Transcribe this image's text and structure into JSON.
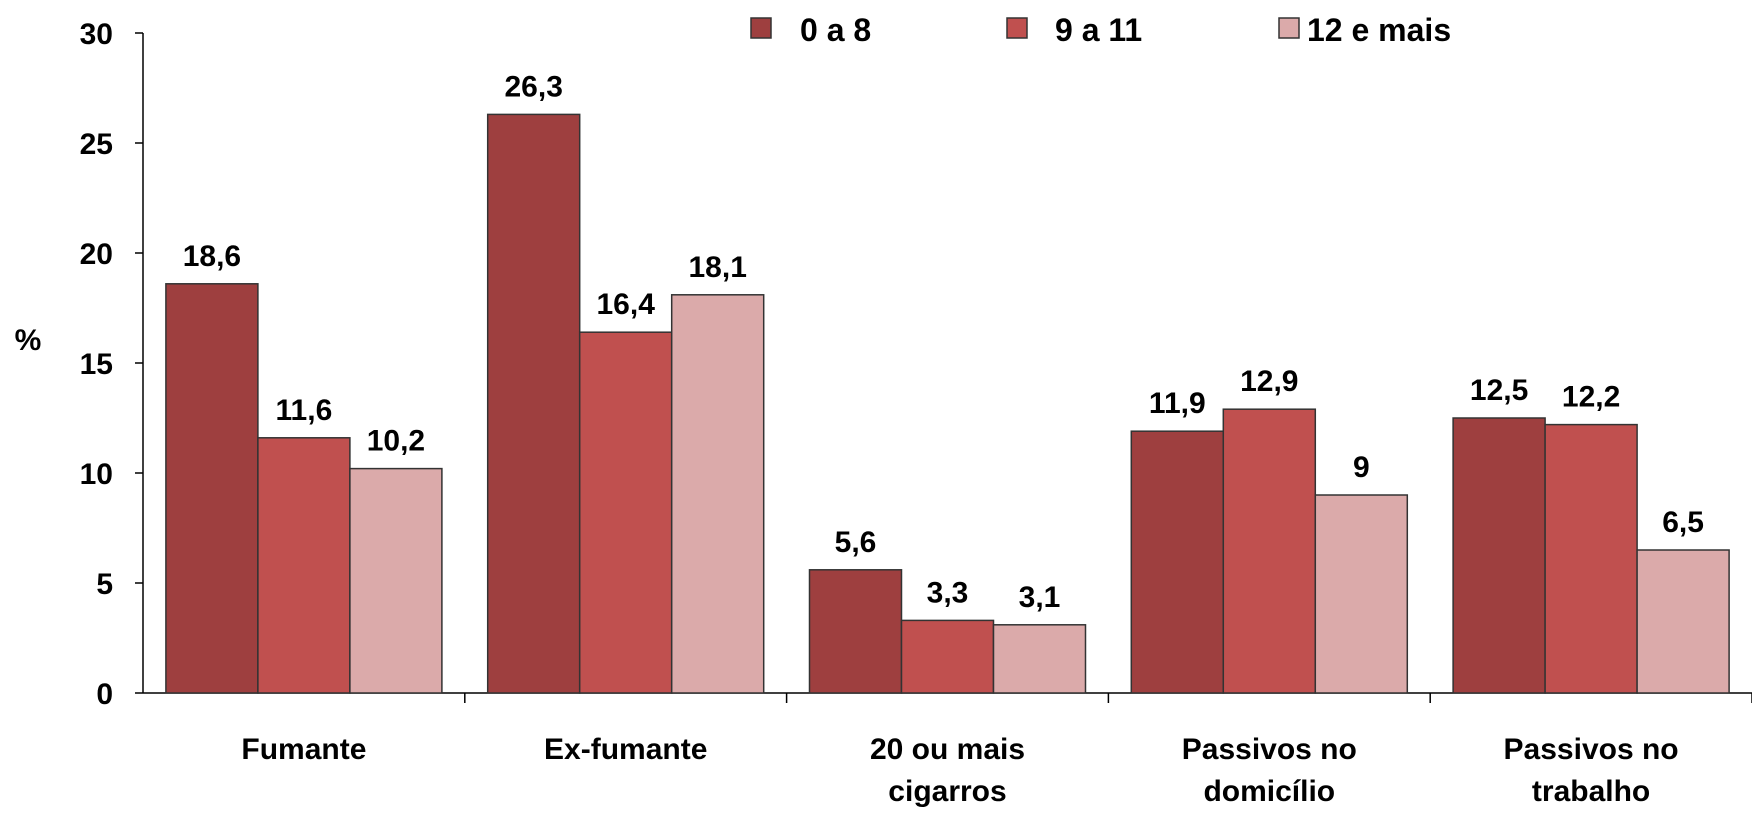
{
  "chart_data": {
    "type": "bar",
    "title": "",
    "xlabel": "",
    "ylabel": "%",
    "ylim": [
      0,
      30
    ],
    "yticks": [
      "0",
      "5",
      "10",
      "15",
      "20",
      "25",
      "30"
    ],
    "grid": false,
    "legend_position": "top-right",
    "categories": [
      [
        "Fumante"
      ],
      [
        "Ex-fumante"
      ],
      [
        "20 ou mais",
        "cigarros"
      ],
      [
        "Passivos no",
        "domicílio"
      ],
      [
        "Passivos no",
        "trabalho"
      ]
    ],
    "series": [
      {
        "name": "0 a 8",
        "color": "#9e3f3f",
        "values": [
          18.6,
          26.3,
          5.6,
          11.9,
          12.5
        ],
        "labels": [
          "18,6",
          "26,3",
          "5,6",
          "11,9",
          "12,5"
        ]
      },
      {
        "name": "9 a 11",
        "color": "#c0504f",
        "values": [
          11.6,
          16.4,
          3.3,
          12.9,
          12.2
        ],
        "labels": [
          "11,6",
          "16,4",
          "3,3",
          "12,9",
          "12,2"
        ]
      },
      {
        "name": "12 e mais",
        "color": "#dbaaaa",
        "values": [
          10.2,
          18.1,
          3.1,
          9,
          6.5
        ],
        "labels": [
          "10,2",
          "18,1",
          "3,1",
          "9",
          "6,5"
        ]
      }
    ]
  }
}
